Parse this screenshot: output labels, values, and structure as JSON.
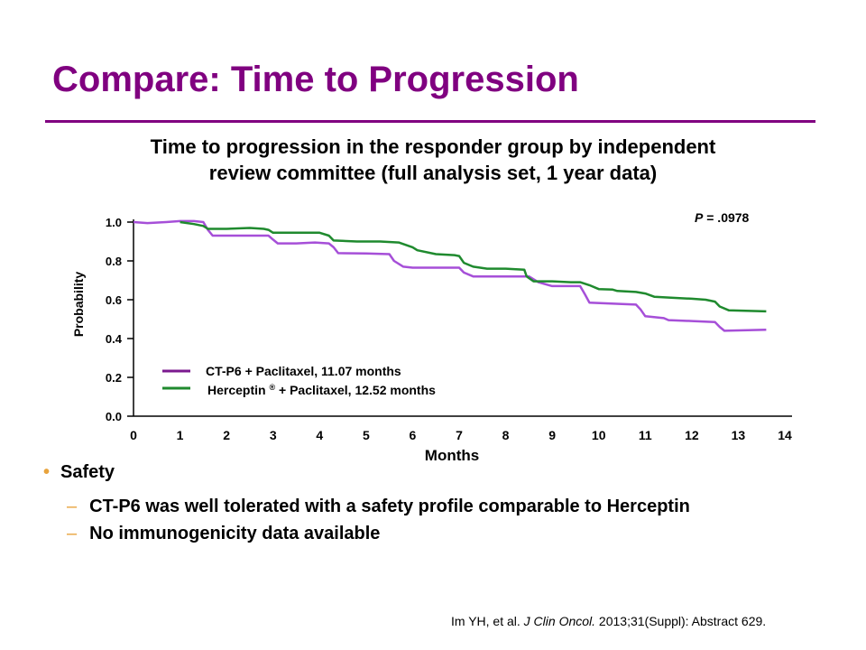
{
  "slide": {
    "title": "Compare: Time to Progression",
    "bullet": "Safety",
    "sub_bullets": [
      "CT-P6 was well tolerated with a safety profile comparable to Herceptin",
      "No immunogenicity data available"
    ],
    "citation_authors": "Im YH, et al.",
    "citation_journal": "J Clin Oncol.",
    "citation_detail": "2013;31(Suppl): Abstract 629.",
    "colors": {
      "title": "#800080",
      "bullet": "#E8A33D"
    }
  },
  "chart_data": {
    "type": "line",
    "title_line1": "Time to progression in the responder group by independent",
    "title_line2": "review committee (full analysis set, 1 year data)",
    "xlabel": "Months",
    "ylabel": "Probability",
    "annotation_italic": "P",
    "annotation_rest": " = .0978",
    "xlim": [
      0,
      14
    ],
    "ylim": [
      0,
      1
    ],
    "x_ticks": [
      "0",
      "1",
      "2",
      "3",
      "4",
      "5",
      "6",
      "7",
      "8",
      "9",
      "10",
      "11",
      "12",
      "13",
      "14"
    ],
    "y_ticks": [
      "0.0",
      "0.2",
      "0.4",
      "0.6",
      "0.8",
      "1.0"
    ],
    "legend_position": "bottom-left",
    "series": [
      {
        "name": "CT-P6 + Paclitaxel, 11.07 months",
        "color": "#A64FD8",
        "legend_color": "#7B1A8F",
        "x": [
          0,
          0.3,
          0.7,
          1.0,
          1.3,
          1.5,
          1.6,
          1.7,
          2.0,
          2.5,
          2.9,
          3.0,
          3.1,
          3.5,
          3.9,
          4.2,
          4.3,
          4.4,
          5.0,
          5.5,
          5.6,
          5.8,
          6.0,
          7.0,
          7.1,
          7.3,
          8.0,
          8.5,
          8.7,
          9.0,
          9.6,
          9.7,
          9.8,
          10.5,
          10.8,
          10.9,
          11.0,
          11.4,
          11.5,
          12.0,
          12.5,
          12.6,
          12.7,
          13.0,
          13.6
        ],
        "y": [
          1.0,
          0.995,
          1.0,
          1.005,
          1.005,
          1.0,
          0.96,
          0.93,
          0.93,
          0.93,
          0.93,
          0.91,
          0.89,
          0.89,
          0.895,
          0.89,
          0.87,
          0.84,
          0.838,
          0.835,
          0.8,
          0.77,
          0.765,
          0.765,
          0.74,
          0.72,
          0.72,
          0.72,
          0.69,
          0.67,
          0.67,
          0.63,
          0.585,
          0.578,
          0.575,
          0.55,
          0.515,
          0.505,
          0.495,
          0.49,
          0.485,
          0.46,
          0.44,
          0.442,
          0.445
        ]
      },
      {
        "name": "Herceptin® + Paclitaxel, 12.52 months",
        "color": "#1F8A2E",
        "legend_color": "#1F8A2E",
        "x": [
          1.0,
          1.3,
          1.5,
          1.6,
          2.0,
          2.5,
          2.8,
          2.9,
          3.0,
          3.5,
          4.0,
          4.2,
          4.3,
          4.8,
          5.3,
          5.7,
          6.0,
          6.1,
          6.5,
          6.9,
          7.0,
          7.1,
          7.3,
          7.6,
          8.0,
          8.4,
          8.45,
          8.6,
          9.0,
          9.4,
          9.6,
          9.8,
          10.0,
          10.3,
          10.4,
          10.8,
          11.0,
          11.2,
          11.6,
          12.0,
          12.3,
          12.5,
          12.6,
          12.8,
          13.6
        ],
        "y": [
          1.0,
          0.99,
          0.98,
          0.965,
          0.965,
          0.97,
          0.965,
          0.96,
          0.945,
          0.945,
          0.945,
          0.93,
          0.905,
          0.9,
          0.9,
          0.895,
          0.87,
          0.855,
          0.835,
          0.83,
          0.825,
          0.79,
          0.77,
          0.76,
          0.76,
          0.755,
          0.72,
          0.695,
          0.695,
          0.69,
          0.69,
          0.675,
          0.655,
          0.652,
          0.645,
          0.64,
          0.632,
          0.615,
          0.61,
          0.605,
          0.6,
          0.59,
          0.565,
          0.545,
          0.54
        ]
      }
    ]
  }
}
